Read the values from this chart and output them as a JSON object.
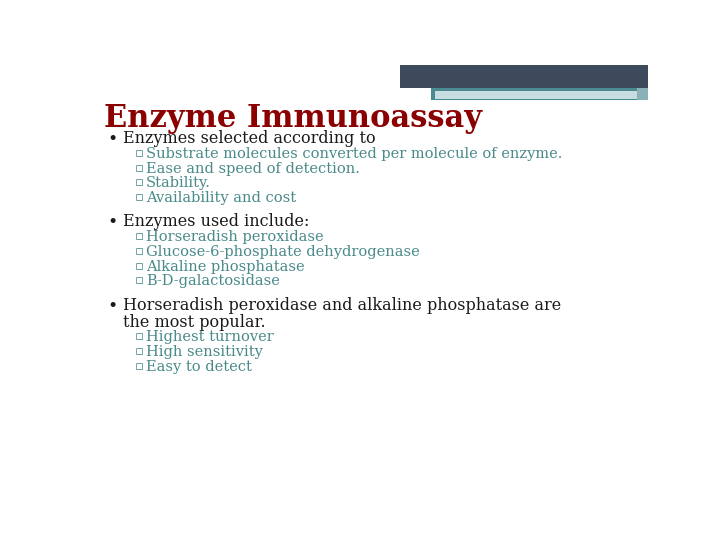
{
  "title": "Enzyme Immunoassay",
  "title_color": "#8B0000",
  "title_fontsize": 22,
  "background_color": "#FFFFFF",
  "bullet_color": "#1a1a1a",
  "sub_bullet_color": "#4a8a8a",
  "bullet_fontsize": 11.5,
  "sub_bullet_fontsize": 10.5,
  "header_dark": "#3d4a5c",
  "header_teal": "#4a8a90",
  "header_light": "#c8dde0",
  "bullets": [
    {
      "text": "Enzymes selected according to",
      "subitems": [
        "Substrate molecules converted per molecule of enzyme.",
        "Ease and speed of detection.",
        "Stability.",
        "Availability and cost"
      ]
    },
    {
      "text": "Enzymes used include:",
      "subitems": [
        "Horseradish peroxidase",
        "Glucose-6-phosphate dehydrogenase",
        "Alkaline phosphatase",
        "B-D-galactosidase"
      ]
    },
    {
      "text": "Horseradish peroxidase and alkaline phosphatase are the most popular.",
      "subitems": [
        "Highest turnover",
        "High sensitivity",
        "Easy to detect"
      ]
    }
  ]
}
